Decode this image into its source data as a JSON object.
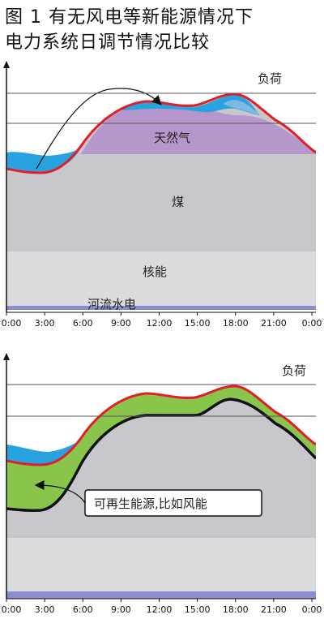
{
  "title": {
    "line1": "图 1 有无风电等新能源情况下",
    "line2": "电力系统日调节情况比较"
  },
  "colors": {
    "coal": "#c8c8cc",
    "nuclear": "#dcdcde",
    "hydro": "#8a8ecf",
    "gas": "#b697cb",
    "peak_blue": "#29a3df",
    "peak_blue_light": "#7db9e4",
    "load": "#e41e26",
    "wind": "#88c54a",
    "grid": "#555555"
  },
  "chart_data": [
    {
      "type": "area",
      "x": [
        "0:00",
        "3:00",
        "6:00",
        "9:00",
        "12:00",
        "15:00",
        "18:00",
        "21:00",
        "0:00"
      ],
      "xlim": [
        0,
        24
      ],
      "series": [
        {
          "name": "河流水电",
          "x": [
            0,
            24
          ],
          "y": [
            3,
            3
          ]
        },
        {
          "name": "核能",
          "x": [
            0,
            24
          ],
          "y": [
            23,
            23
          ]
        },
        {
          "name": "煤",
          "x": [
            0,
            3,
            6,
            9,
            12,
            15,
            18,
            21,
            24
          ],
          "y": [
            60,
            60,
            61,
            61,
            61,
            61,
            61,
            61,
            60
          ]
        },
        {
          "name": "天然气",
          "x": [
            0,
            3,
            6,
            9,
            12,
            15,
            18,
            21,
            24
          ],
          "y": [
            60,
            60,
            63,
            75,
            79,
            79,
            80,
            70,
            60
          ]
        },
        {
          "name": "负荷",
          "x": [
            0,
            2,
            4,
            6,
            8,
            10,
            12,
            14,
            16,
            17.5,
            19,
            21,
            23,
            24
          ],
          "y": [
            57,
            55,
            55,
            64,
            75,
            84,
            86,
            85,
            87,
            88,
            84,
            77,
            69,
            64
          ]
        }
      ],
      "labels": {
        "gas": "天然气",
        "coal": "煤",
        "nuclear": "核能",
        "hydro": "河流水电",
        "load": "负荷"
      }
    },
    {
      "type": "area",
      "x": [
        "0:00",
        "3:00",
        "6:00",
        "9:00",
        "12:00",
        "15:00",
        "18:00",
        "21:00",
        "0:00"
      ],
      "xlim": [
        0,
        24
      ],
      "series": [
        {
          "name": "负荷",
          "x": [
            0,
            2,
            4,
            6,
            8,
            10,
            12,
            14,
            16,
            17.5,
            19,
            21,
            23,
            24
          ],
          "y": [
            57,
            55,
            55,
            64,
            75,
            84,
            86,
            85,
            87,
            88,
            84,
            77,
            69,
            64
          ]
        },
        {
          "name": "可再生能源,比如风能",
          "x": [
            0,
            2,
            4,
            6,
            8,
            10,
            12,
            14,
            16,
            17.5,
            19,
            21,
            23,
            24
          ],
          "y": [
            40,
            38,
            40,
            50,
            65,
            75,
            77,
            76,
            80,
            82,
            77,
            70,
            63,
            52
          ]
        }
      ],
      "labels": {
        "load": "负荷",
        "renewable": "可再生能源,比如风能"
      }
    }
  ]
}
